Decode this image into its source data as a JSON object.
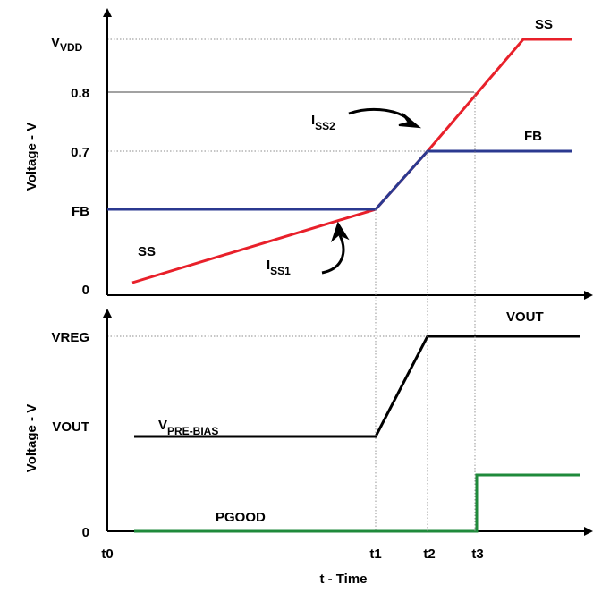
{
  "top_panel": {
    "y_axis_title": "Voltage - V",
    "y_ticks": {
      "vdd_main": "V",
      "vdd_sub": "VDD",
      "v08": "0.8",
      "v07": "0.7",
      "fb": "FB",
      "zero": "0"
    },
    "labels": {
      "ss_top": "SS",
      "fb_right": "FB",
      "ss_left": "SS",
      "iss2_main": "I",
      "iss2_sub": "SS2",
      "iss1_main": "I",
      "iss1_sub": "SS1"
    }
  },
  "bottom_panel": {
    "y_axis_title": "Voltage - V",
    "y_ticks": {
      "vreg": "VREG",
      "vout": "VOUT",
      "zero": "0"
    },
    "labels": {
      "vout_right": "VOUT",
      "prebias_main": "V",
      "prebias_sub": "PRE-BIAS",
      "pgood": "PGOOD"
    }
  },
  "x_axis": {
    "ticks": {
      "t0": "t0",
      "t1": "t1",
      "t2": "t2",
      "t3": "t3"
    },
    "title": "t - Time"
  },
  "colors": {
    "ss": "#e8202a",
    "fb": "#2b3990",
    "vout": "#000000",
    "pgood": "#1f8a3b",
    "guide": "#8c8c8c"
  }
}
